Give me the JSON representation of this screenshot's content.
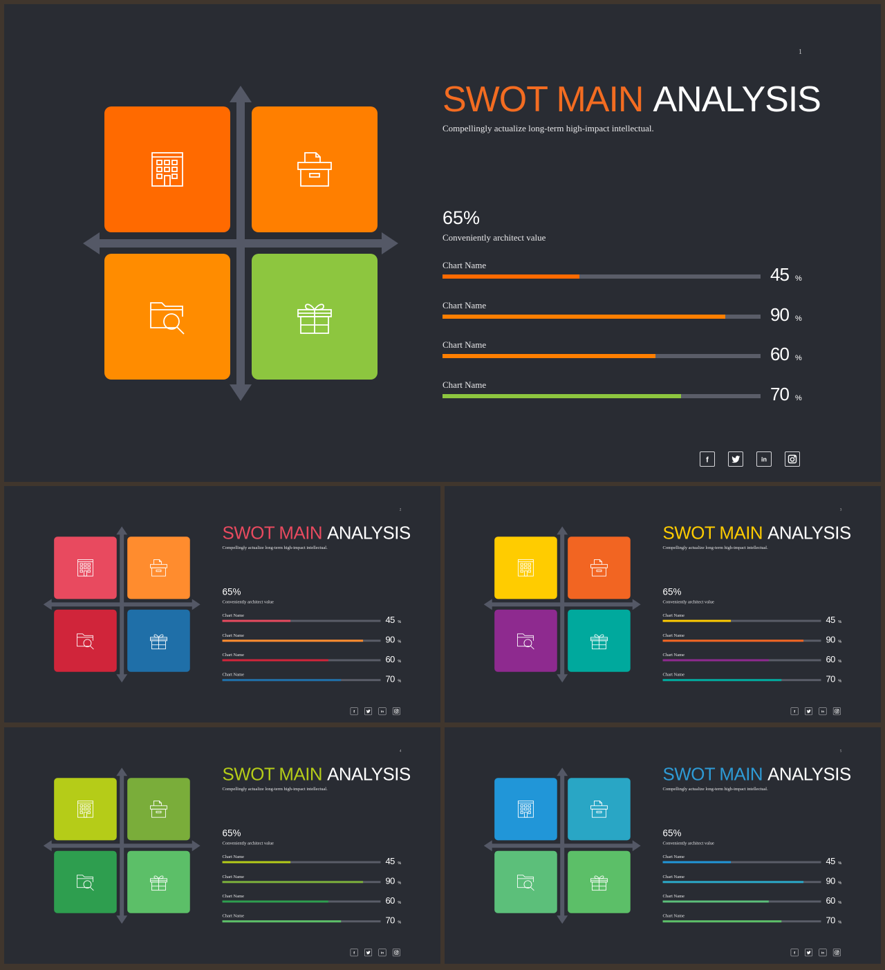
{
  "slides": [
    {
      "id": "main",
      "page_number": "1",
      "title_accent": "SWOT MAIN",
      "title_rest": "ANALYSIS",
      "subtitle": "Compellingly actualize long-term high-impact intellectual.",
      "headline_value": "65%",
      "headline_caption": "Conveniently architect value",
      "colors": {
        "title_accent": "#f36c21",
        "squares": [
          "#ff6a00",
          "#ff7f00",
          "#ff8c00",
          "#8dc63f"
        ],
        "bars": [
          "#ff6a00",
          "#ff7f00",
          "#ff7f00",
          "#8dc63f"
        ]
      },
      "bars": [
        {
          "label": "Chart Name",
          "value": "45",
          "unit": "%",
          "fill": 0.43
        },
        {
          "label": "Chart Name",
          "value": "90",
          "unit": "%",
          "fill": 0.89
        },
        {
          "label": "Chart Name",
          "value": "60",
          "unit": "%",
          "fill": 0.67
        },
        {
          "label": "Chart Name",
          "value": "70",
          "unit": "%",
          "fill": 0.75
        }
      ],
      "quadrant_icons": [
        "building-icon",
        "archive-box-icon",
        "folder-search-icon",
        "gift-icon"
      ],
      "social_icons": [
        "facebook-icon",
        "twitter-icon",
        "linkedin-icon",
        "instagram-icon"
      ],
      "social_glyphs": [
        "f",
        "",
        "in",
        ""
      ]
    },
    {
      "id": "2",
      "page_number": "2",
      "title_accent": "SWOT MAIN",
      "title_rest": "ANALYSIS",
      "subtitle": "Compellingly actualize long-term high-impact intellectual.",
      "headline_value": "65%",
      "headline_caption": "Conveniently architect value",
      "colors": {
        "title_accent": "#e84a5f",
        "squares": [
          "#e84a5f",
          "#ff8c2e",
          "#d0253a",
          "#1f6fa8"
        ],
        "bars": [
          "#e84a5f",
          "#ff8c2e",
          "#d0253a",
          "#1f6fa8"
        ]
      },
      "bars": [
        {
          "label": "Chart Name",
          "value": "45",
          "unit": "%",
          "fill": 0.43
        },
        {
          "label": "Chart Name",
          "value": "90",
          "unit": "%",
          "fill": 0.89
        },
        {
          "label": "Chart Name",
          "value": "60",
          "unit": "%",
          "fill": 0.67
        },
        {
          "label": "Chart Name",
          "value": "70",
          "unit": "%",
          "fill": 0.75
        }
      ],
      "quadrant_icons": [
        "building-icon",
        "archive-box-icon",
        "folder-search-icon",
        "gift-icon"
      ],
      "social_icons": [
        "facebook-icon",
        "twitter-icon",
        "linkedin-icon",
        "instagram-icon"
      ],
      "social_glyphs": [
        "f",
        "",
        "in",
        ""
      ]
    },
    {
      "id": "3",
      "page_number": "3",
      "title_accent": "SWOT MAIN",
      "title_rest": "ANALYSIS",
      "subtitle": "Compellingly actualize long-term high-impact intellectual.",
      "headline_value": "65%",
      "headline_caption": "Conveniently architect value",
      "colors": {
        "title_accent": "#ffcc00",
        "squares": [
          "#ffcc00",
          "#f26522",
          "#8e2a8f",
          "#00a99d"
        ],
        "bars": [
          "#ffcc00",
          "#f26522",
          "#8e2a8f",
          "#00a99d"
        ]
      },
      "bars": [
        {
          "label": "Chart Name",
          "value": "45",
          "unit": "%",
          "fill": 0.43
        },
        {
          "label": "Chart Name",
          "value": "90",
          "unit": "%",
          "fill": 0.89
        },
        {
          "label": "Chart Name",
          "value": "60",
          "unit": "%",
          "fill": 0.67
        },
        {
          "label": "Chart Name",
          "value": "70",
          "unit": "%",
          "fill": 0.75
        }
      ],
      "quadrant_icons": [
        "building-icon",
        "archive-box-icon",
        "folder-search-icon",
        "gift-icon"
      ],
      "social_icons": [
        "facebook-icon",
        "twitter-icon",
        "linkedin-icon",
        "instagram-icon"
      ],
      "social_glyphs": [
        "f",
        "",
        "in",
        ""
      ]
    },
    {
      "id": "4",
      "page_number": "4",
      "title_accent": "SWOT MAIN",
      "title_rest": "ANALYSIS",
      "subtitle": "Compellingly actualize long-term high-impact intellectual.",
      "headline_value": "65%",
      "headline_caption": "Conveniently architect value",
      "colors": {
        "title_accent": "#b5cc18",
        "squares": [
          "#b5cc18",
          "#7aad3a",
          "#2e9e4f",
          "#5cbf68"
        ],
        "bars": [
          "#b5cc18",
          "#7aad3a",
          "#2e9e4f",
          "#5cbf68"
        ]
      },
      "bars": [
        {
          "label": "Chart Name",
          "value": "45",
          "unit": "%",
          "fill": 0.43
        },
        {
          "label": "Chart Name",
          "value": "90",
          "unit": "%",
          "fill": 0.89
        },
        {
          "label": "Chart Name",
          "value": "60",
          "unit": "%",
          "fill": 0.67
        },
        {
          "label": "Chart Name",
          "value": "70",
          "unit": "%",
          "fill": 0.75
        }
      ],
      "quadrant_icons": [
        "building-icon",
        "archive-box-icon",
        "folder-search-icon",
        "gift-icon"
      ],
      "social_icons": [
        "facebook-icon",
        "twitter-icon",
        "linkedin-icon",
        "instagram-icon"
      ],
      "social_glyphs": [
        "f",
        "",
        "in",
        ""
      ]
    },
    {
      "id": "5",
      "page_number": "5",
      "title_accent": "SWOT MAIN",
      "title_rest": "ANALYSIS",
      "subtitle": "Compellingly actualize long-term high-impact intellectual.",
      "headline_value": "65%",
      "headline_caption": "Conveniently architect value",
      "colors": {
        "title_accent": "#2e9bd6",
        "squares": [
          "#2196d8",
          "#29a6c5",
          "#5cbf7a",
          "#5cbf68"
        ],
        "bars": [
          "#2196d8",
          "#29a6c5",
          "#5cbf7a",
          "#5cbf68"
        ]
      },
      "bars": [
        {
          "label": "Chart Name",
          "value": "45",
          "unit": "%",
          "fill": 0.43
        },
        {
          "label": "Chart Name",
          "value": "90",
          "unit": "%",
          "fill": 0.89
        },
        {
          "label": "Chart Name",
          "value": "60",
          "unit": "%",
          "fill": 0.67
        },
        {
          "label": "Chart Name",
          "value": "70",
          "unit": "%",
          "fill": 0.75
        }
      ],
      "quadrant_icons": [
        "building-icon",
        "archive-box-icon",
        "folder-search-icon",
        "gift-icon"
      ],
      "social_icons": [
        "facebook-icon",
        "twitter-icon",
        "linkedin-icon",
        "instagram-icon"
      ],
      "social_glyphs": [
        "f",
        "",
        "in",
        ""
      ]
    }
  ]
}
